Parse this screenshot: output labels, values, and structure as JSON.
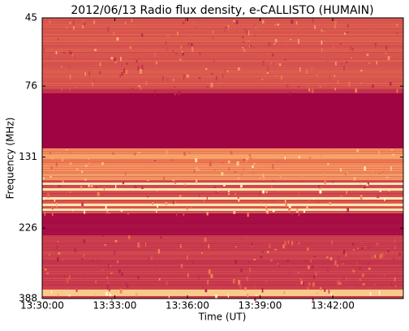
{
  "chart_data": {
    "type": "spectrogram",
    "title": "2012/06/13  Radio flux density, e-CALLISTO (HUMAIN)",
    "xlabel": "Time (UT)",
    "ylabel": "Frequency (MHz)",
    "xlim": [
      48600,
      49495
    ],
    "xticks": [
      {
        "value": 48600,
        "label": "13:30:00"
      },
      {
        "value": 48780,
        "label": "13:33:00"
      },
      {
        "value": 48960,
        "label": "13:36:00"
      },
      {
        "value": 49140,
        "label": "13:39:00"
      },
      {
        "value": 49320,
        "label": "13:42:00"
      }
    ],
    "ylim": [
      45,
      388
    ],
    "ylog": true,
    "yinverted": true,
    "yticks": [
      45,
      76,
      131,
      226,
      388
    ]
  }
}
